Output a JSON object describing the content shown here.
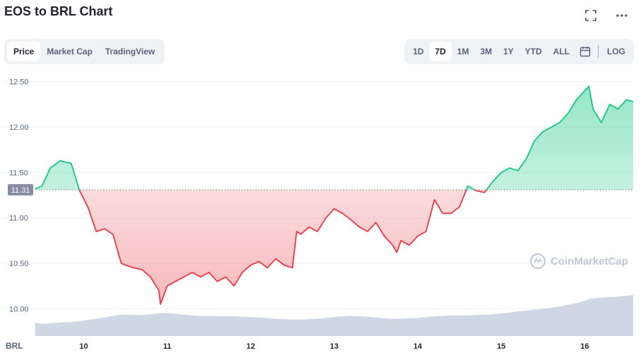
{
  "header": {
    "title": "EOS to BRL Chart"
  },
  "icons": {
    "fullscreen": "fullscreen-icon",
    "more": "more-icon",
    "calendar": "calendar-icon",
    "logo": "coinmarketcap-logo-icon"
  },
  "tabs": [
    {
      "label": "Price",
      "active": true
    },
    {
      "label": "Market Cap",
      "active": false
    },
    {
      "label": "TradingView",
      "active": false
    }
  ],
  "ranges": [
    {
      "label": "1D",
      "active": false
    },
    {
      "label": "7D",
      "active": true
    },
    {
      "label": "1M",
      "active": false
    },
    {
      "label": "3M",
      "active": false
    },
    {
      "label": "1Y",
      "active": false
    },
    {
      "label": "YTD",
      "active": false
    },
    {
      "label": "ALL",
      "active": false
    }
  ],
  "log_label": "LOG",
  "watermark": "CoinMarketCap",
  "colors": {
    "up": "#16c784",
    "down": "#ea3943",
    "volume": "#cfd6e4",
    "grid": "#eff2f5",
    "axis_text": "#58667e"
  },
  "chart_data": {
    "type": "line",
    "currency_label": "BRL",
    "baseline_value": 11.31,
    "baseline_label": "11.31",
    "ylim": [
      9.7,
      12.56
    ],
    "yticks": [
      10.0,
      10.5,
      11.0,
      11.5,
      12.0,
      12.5
    ],
    "ytick_labels": [
      "10.00",
      "10.50",
      "11.00",
      "11.50",
      "12.00",
      "12.50"
    ],
    "xlim": [
      9.42,
      16.58
    ],
    "xticks": [
      10,
      11,
      12,
      13,
      14,
      15,
      16
    ],
    "xtick_labels": [
      "10",
      "11",
      "12",
      "13",
      "14",
      "15",
      "16"
    ],
    "x": [
      9.42,
      9.5,
      9.6,
      9.72,
      9.85,
      9.95,
      10.05,
      10.15,
      10.25,
      10.35,
      10.45,
      10.5,
      10.6,
      10.7,
      10.8,
      10.9,
      10.92,
      11.0,
      11.1,
      11.2,
      11.3,
      11.4,
      11.5,
      11.6,
      11.7,
      11.8,
      11.9,
      12.0,
      12.1,
      12.2,
      12.3,
      12.4,
      12.5,
      12.55,
      12.6,
      12.7,
      12.8,
      12.9,
      13.0,
      13.1,
      13.2,
      13.3,
      13.4,
      13.5,
      13.6,
      13.7,
      13.75,
      13.8,
      13.9,
      14.0,
      14.1,
      14.2,
      14.3,
      14.4,
      14.5,
      14.6,
      14.7,
      14.8,
      14.9,
      15.0,
      15.1,
      15.2,
      15.3,
      15.4,
      15.5,
      15.6,
      15.7,
      15.8,
      15.9,
      16.0,
      16.05,
      16.1,
      16.2,
      16.3,
      16.4,
      16.5,
      16.58
    ],
    "values": [
      11.32,
      11.35,
      11.55,
      11.63,
      11.6,
      11.3,
      11.12,
      10.85,
      10.88,
      10.82,
      10.5,
      10.48,
      10.45,
      10.43,
      10.35,
      10.2,
      10.05,
      10.25,
      10.3,
      10.35,
      10.4,
      10.35,
      10.4,
      10.3,
      10.35,
      10.25,
      10.4,
      10.48,
      10.52,
      10.45,
      10.55,
      10.48,
      10.45,
      10.85,
      10.82,
      10.9,
      10.85,
      11.0,
      11.1,
      11.05,
      10.98,
      10.9,
      10.85,
      10.95,
      10.8,
      10.7,
      10.62,
      10.75,
      10.7,
      10.8,
      10.85,
      11.2,
      11.05,
      11.05,
      11.12,
      11.35,
      11.3,
      11.28,
      11.4,
      11.5,
      11.55,
      11.52,
      11.65,
      11.85,
      11.95,
      12.0,
      12.05,
      12.15,
      12.3,
      12.4,
      12.45,
      12.2,
      12.05,
      12.25,
      12.2,
      12.3,
      12.28
    ],
    "volume": [
      0.32,
      0.3,
      0.31,
      0.33,
      0.34,
      0.36,
      0.39,
      0.42,
      0.45,
      0.49,
      0.52,
      0.52,
      0.51,
      0.51,
      0.53,
      0.55,
      0.56,
      0.56,
      0.54,
      0.52,
      0.5,
      0.49,
      0.49,
      0.48,
      0.48,
      0.48,
      0.47,
      0.46,
      0.45,
      0.44,
      0.42,
      0.41,
      0.4,
      0.4,
      0.4,
      0.41,
      0.42,
      0.44,
      0.46,
      0.48,
      0.49,
      0.48,
      0.47,
      0.45,
      0.43,
      0.42,
      0.42,
      0.42,
      0.43,
      0.44,
      0.46,
      0.48,
      0.49,
      0.5,
      0.5,
      0.5,
      0.51,
      0.52,
      0.53,
      0.55,
      0.57,
      0.6,
      0.62,
      0.64,
      0.66,
      0.69,
      0.72,
      0.76,
      0.8,
      0.86,
      0.9,
      0.92,
      0.93,
      0.95,
      0.96,
      0.98,
      1.0
    ]
  }
}
